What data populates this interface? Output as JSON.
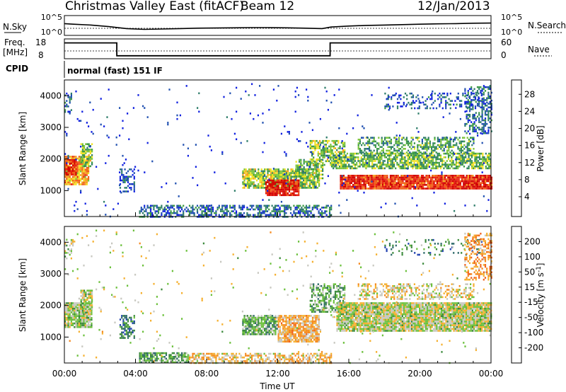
{
  "header": {
    "station": "Christmas Valley East (fitACF)",
    "beam": "Beam 12",
    "date": "12/Jan/2013"
  },
  "panels": {
    "nsky": {
      "label": "N.Sky",
      "right_label": "N.Search",
      "tick_top": "10^5",
      "tick_bottom": "10^0",
      "right_tick_top": "10^5",
      "right_tick_bottom": "10^0",
      "profile": [
        [
          0,
          0.45
        ],
        [
          0.5,
          0.42
        ],
        [
          1.5,
          0.38
        ],
        [
          2.5,
          0.3
        ],
        [
          3.5,
          0.2
        ],
        [
          4.5,
          0.16
        ],
        [
          5.5,
          0.18
        ],
        [
          6.5,
          0.2
        ],
        [
          7.5,
          0.22
        ],
        [
          8.5,
          0.23
        ],
        [
          9.5,
          0.24
        ],
        [
          10.5,
          0.25
        ],
        [
          11.5,
          0.25
        ],
        [
          12.5,
          0.24
        ],
        [
          13.5,
          0.22
        ],
        [
          14.5,
          0.2
        ],
        [
          15.0,
          0.28
        ],
        [
          16,
          0.33
        ],
        [
          17,
          0.36
        ],
        [
          18,
          0.38
        ],
        [
          19,
          0.4
        ],
        [
          20,
          0.42
        ],
        [
          21,
          0.44
        ],
        [
          22,
          0.45
        ],
        [
          23,
          0.47
        ],
        [
          24,
          0.48
        ]
      ]
    },
    "freq": {
      "label_line1": "Freq.",
      "label_line2": "[MHz]",
      "left_tick_top": "18",
      "left_tick_bottom": "8",
      "right_label": "Nave",
      "right_tick_top": "60",
      "right_tick_bottom": "0",
      "steps": [
        [
          0,
          0.8
        ],
        [
          2.95,
          0.8
        ],
        [
          2.95,
          0.15
        ],
        [
          14.95,
          0.15
        ],
        [
          14.95,
          0.8
        ],
        [
          24,
          0.8
        ]
      ]
    },
    "cpid": {
      "label": "CPID",
      "text": "normal (fast) 151 IF"
    }
  },
  "chart_data": [
    {
      "type": "heatmap",
      "name": "power",
      "ylabel": "Slant Range [km]",
      "xlabel": "",
      "ylim": [
        180,
        4500
      ],
      "yticks": [
        1000,
        2000,
        3000,
        4000
      ],
      "x_range_hours": [
        0,
        24
      ],
      "colorbar": {
        "label": "Power [dB]",
        "ticks": [
          "4",
          "8",
          "12",
          "16",
          "20",
          "24",
          "28"
        ],
        "colors": [
          "#1020e0",
          "#2050b0",
          "#2e7d6a",
          "#3c9a45",
          "#7cc43a",
          "#f2e224",
          "#f5a020",
          "#f06018",
          "#e82010",
          "#d00000"
        ]
      },
      "regions": [
        {
          "t0": 0.0,
          "t1": 0.4,
          "r0": 3500,
          "r1": 4100,
          "level": 0.2,
          "density": 0.4
        },
        {
          "t0": 0.0,
          "t1": 1.4,
          "r0": 1200,
          "r1": 2100,
          "level": 0.65,
          "density": 0.85
        },
        {
          "t0": 0.0,
          "t1": 0.7,
          "r0": 1500,
          "r1": 2000,
          "level": 0.85,
          "density": 0.9
        },
        {
          "t0": 0.9,
          "t1": 1.6,
          "r0": 1800,
          "r1": 2500,
          "level": 0.45,
          "density": 0.7
        },
        {
          "t0": 3.1,
          "t1": 3.9,
          "r0": 1000,
          "r1": 1700,
          "level": 0.15,
          "density": 0.5
        },
        {
          "t0": 4.2,
          "t1": 15.0,
          "r0": 200,
          "r1": 550,
          "level": 0.2,
          "density": 0.55
        },
        {
          "t0": 10.0,
          "t1": 14.3,
          "r0": 1100,
          "r1": 1700,
          "level": 0.45,
          "density": 0.85
        },
        {
          "t0": 11.3,
          "t1": 13.2,
          "r0": 850,
          "r1": 1350,
          "level": 0.9,
          "density": 0.9
        },
        {
          "t0": 13.0,
          "t1": 14.5,
          "r0": 1400,
          "r1": 2000,
          "level": 0.4,
          "density": 0.6
        },
        {
          "t0": 13.8,
          "t1": 15.8,
          "r0": 1800,
          "r1": 2600,
          "level": 0.45,
          "density": 0.55
        },
        {
          "t0": 15.0,
          "t1": 24.0,
          "r0": 1700,
          "r1": 2200,
          "level": 0.4,
          "density": 0.75
        },
        {
          "t0": 15.5,
          "t1": 24.0,
          "r0": 1050,
          "r1": 1500,
          "level": 0.85,
          "density": 0.95
        },
        {
          "t0": 16.5,
          "t1": 23.0,
          "r0": 2200,
          "r1": 2700,
          "level": 0.35,
          "density": 0.5
        },
        {
          "t0": 18.0,
          "t1": 23.5,
          "r0": 3600,
          "r1": 4100,
          "level": 0.15,
          "density": 0.25
        },
        {
          "t0": 22.5,
          "t1": 24.0,
          "r0": 2800,
          "r1": 4300,
          "level": 0.2,
          "density": 0.45
        },
        {
          "t0": 0.0,
          "t1": 24.0,
          "r0": 200,
          "r1": 4400,
          "level": 0.05,
          "density": 0.015
        }
      ]
    },
    {
      "type": "heatmap",
      "name": "velocity",
      "ylabel": "Slant Range [km]",
      "xlabel": "Time UT",
      "ylim": [
        180,
        4500
      ],
      "yticks": [
        1000,
        2000,
        3000,
        4000
      ],
      "xticks": [
        "00:00",
        "04:00",
        "08:00",
        "12:00",
        "16:00",
        "20:00",
        "00:00"
      ],
      "x_range_hours": [
        0,
        24
      ],
      "colorbar": {
        "label": "Velocity [m s^-1]",
        "ticks": [
          "200",
          "100",
          "50",
          "15",
          "-15",
          "-50",
          "-100",
          "-200"
        ],
        "colors": [
          "#2040b0",
          "#2e6a6a",
          "#3c8a3c",
          "#6cc03c",
          "#c8c8c0",
          "#f5b030",
          "#f58a20",
          "#f06018",
          "#e02010"
        ]
      },
      "regions": [
        {
          "t0": 0.0,
          "t1": 0.5,
          "r0": 3500,
          "r1": 4100,
          "level": 0.45,
          "density": 0.35
        },
        {
          "t0": 0.0,
          "t1": 1.5,
          "r0": 1300,
          "r1": 2100,
          "level": 0.45,
          "density": 0.9
        },
        {
          "t0": 0.9,
          "t1": 1.6,
          "r0": 1800,
          "r1": 2500,
          "level": 0.45,
          "density": 0.7
        },
        {
          "t0": 3.1,
          "t1": 3.9,
          "r0": 1000,
          "r1": 1700,
          "level": 0.2,
          "density": 0.6
        },
        {
          "t0": 4.2,
          "t1": 7.0,
          "r0": 200,
          "r1": 520,
          "level": 0.32,
          "density": 0.7
        },
        {
          "t0": 7.0,
          "t1": 15.0,
          "r0": 200,
          "r1": 500,
          "level": 0.6,
          "density": 0.6
        },
        {
          "t0": 10.0,
          "t1": 12.0,
          "r0": 1100,
          "r1": 1700,
          "level": 0.35,
          "density": 0.85
        },
        {
          "t0": 12.0,
          "t1": 14.3,
          "r0": 850,
          "r1": 1700,
          "level": 0.62,
          "density": 0.85
        },
        {
          "t0": 13.8,
          "t1": 15.8,
          "r0": 1800,
          "r1": 2700,
          "level": 0.33,
          "density": 0.55
        },
        {
          "t0": 15.3,
          "t1": 24.0,
          "r0": 1200,
          "r1": 2100,
          "level": 0.48,
          "density": 0.95
        },
        {
          "t0": 16.5,
          "t1": 23.0,
          "r0": 2200,
          "r1": 2700,
          "level": 0.55,
          "density": 0.4
        },
        {
          "t0": 18.0,
          "t1": 23.5,
          "r0": 3600,
          "r1": 4100,
          "level": 0.2,
          "density": 0.2
        },
        {
          "t0": 22.5,
          "t1": 24.0,
          "r0": 2800,
          "r1": 4300,
          "level": 0.7,
          "density": 0.45
        },
        {
          "t0": 0.0,
          "t1": 24.0,
          "r0": 200,
          "r1": 4400,
          "level": 0.5,
          "density": 0.015
        }
      ]
    }
  ]
}
